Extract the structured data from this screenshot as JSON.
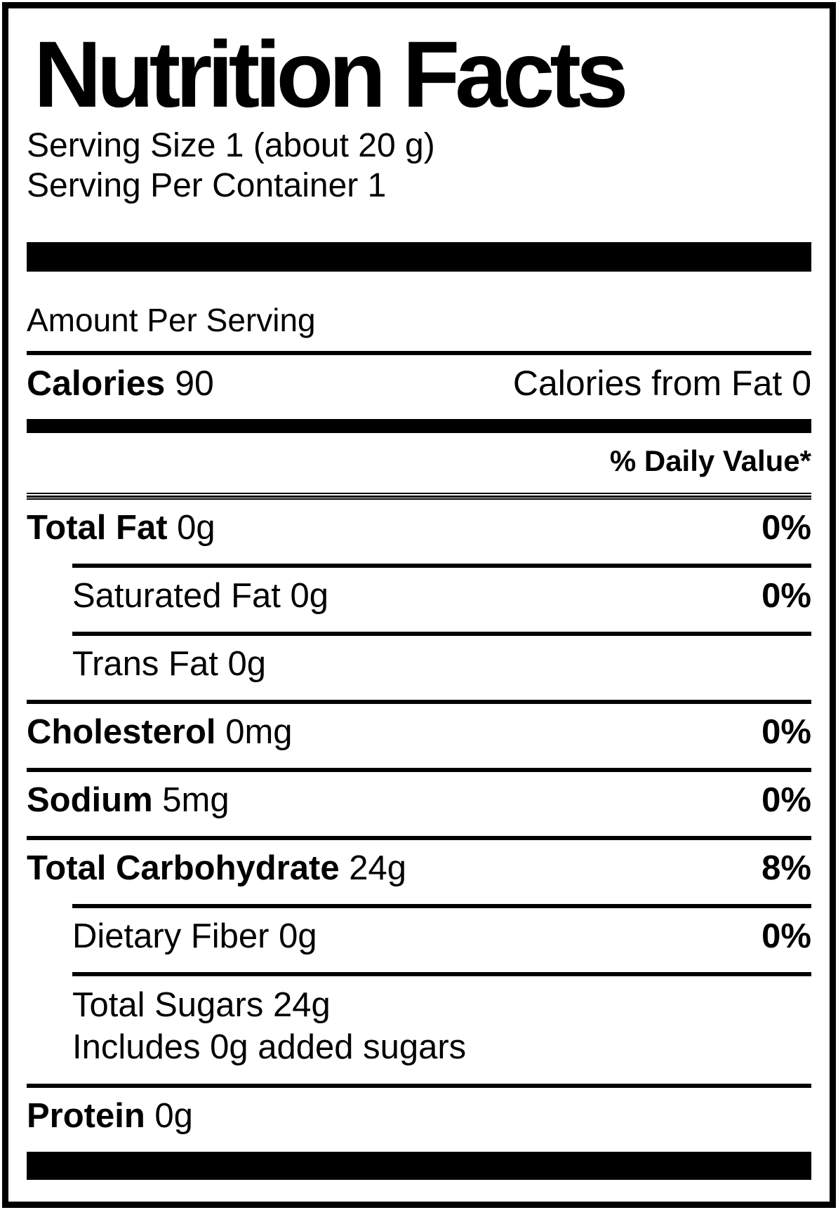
{
  "title": "Nutrition Facts",
  "serving": {
    "size": "Serving Size 1 (about 20 g)",
    "per_container": "Serving Per Container 1"
  },
  "amount_per_serving": "Amount Per Serving",
  "calories": {
    "label": "Calories",
    "value": "90",
    "from_fat": "Calories from Fat 0"
  },
  "daily_value_header": "% Daily Value*",
  "rows": [
    {
      "name": "Total Fat",
      "amount": "0g",
      "dv": "0%"
    },
    {
      "name": "Saturated Fat",
      "amount": "0g",
      "dv": "0%"
    },
    {
      "name": "Trans Fat",
      "amount": "0g",
      "dv": ""
    },
    {
      "name": "Cholesterol",
      "amount": "0mg",
      "dv": "0%"
    },
    {
      "name": "Sodium",
      "amount": "5mg",
      "dv": "0%"
    },
    {
      "name": "Total Carbohydrate",
      "amount": "24g",
      "dv": "8%"
    },
    {
      "name": "Dietary Fiber",
      "amount": "0g",
      "dv": "0%"
    },
    {
      "name": "Total Sugars",
      "amount": "24g",
      "dv": "",
      "note": "Includes 0g added sugars"
    },
    {
      "name": "Protein",
      "amount": "0g",
      "dv": ""
    }
  ],
  "colors": {
    "text": "#000000",
    "background": "#ffffff",
    "rule": "#000000"
  }
}
